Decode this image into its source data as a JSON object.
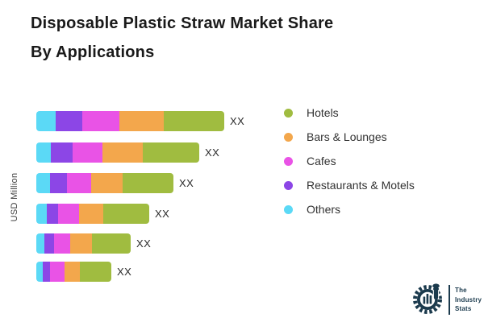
{
  "title": {
    "line1": "Disposable Plastic Straw Market Share",
    "line2": "By Applications"
  },
  "chart_data": {
    "type": "bar",
    "variant": "horizontal-stacked",
    "title": "Disposable Plastic Straw Market Share By Applications",
    "ylabel": "USD Million",
    "xlabel": "",
    "grid": false,
    "legend_position": "right",
    "num_bars": 6,
    "bar_category_labels": [
      "",
      "",
      "",
      "",
      "",
      ""
    ],
    "bar_value_labels": [
      "XX",
      "XX",
      "XX",
      "XX",
      "XX",
      "XX"
    ],
    "units_note": "actual values masked as XX; series values are relative widths",
    "stack_order_left_to_right": [
      "Others",
      "Restaurants & Motels",
      "Cafes",
      "Bars & Lounges",
      "Hotels"
    ],
    "series": [
      {
        "name": "Others",
        "color": "#5bd9f6",
        "values": [
          24,
          18,
          17,
          13,
          10,
          8
        ]
      },
      {
        "name": "Restaurants & Motels",
        "color": "#8c46e6",
        "values": [
          33,
          27,
          21,
          14,
          12,
          9
        ]
      },
      {
        "name": "Cafes",
        "color": "#e953e6",
        "values": [
          46,
          37,
          30,
          26,
          20,
          18
        ]
      },
      {
        "name": "Bars & Lounges",
        "color": "#f3a74c",
        "values": [
          55,
          50,
          39,
          30,
          27,
          19
        ]
      },
      {
        "name": "Hotels",
        "color": "#a0bc40",
        "values": [
          75,
          70,
          63,
          57,
          48,
          39
        ]
      }
    ],
    "legend": [
      {
        "label": "Hotels",
        "color": "#a0bc40"
      },
      {
        "label": "Bars & Lounges",
        "color": "#f3a74c"
      },
      {
        "label": "Cafes",
        "color": "#e953e6"
      },
      {
        "label": "Restaurants & Motels",
        "color": "#8c46e6"
      },
      {
        "label": "Others",
        "color": "#5bd9f6"
      }
    ]
  },
  "logo": {
    "line1": "The",
    "line2": "Industry",
    "line3": "Stats",
    "color": "#1b3a4d"
  }
}
